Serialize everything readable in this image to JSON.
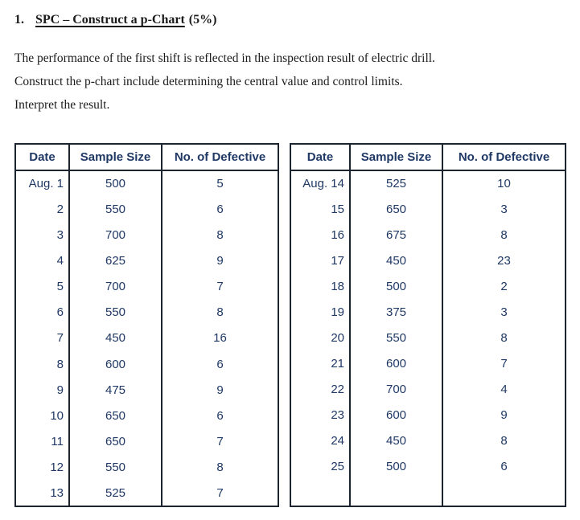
{
  "heading": {
    "number": "1.",
    "title_underlined": "SPC – Construct a p-Chart",
    "title_suffix": "(5%)"
  },
  "intro": {
    "lines": [
      "The performance of the first shift is reflected in the inspection result of electric drill.",
      "Construct the p-chart include determining the central value and control limits.",
      "Interpret the result."
    ]
  },
  "colors": {
    "table_text": "#1f3864",
    "table_border": "#1c2430",
    "body_text": "#1b1b1b",
    "page_bg": "#ffffff"
  },
  "tables": [
    {
      "columns": [
        "Date",
        "Sample Size",
        "No. of Defective"
      ],
      "rows": [
        [
          "Aug. 1",
          "500",
          "5"
        ],
        [
          "2",
          "550",
          "6"
        ],
        [
          "3",
          "700",
          "8"
        ],
        [
          "4",
          "625",
          "9"
        ],
        [
          "5",
          "700",
          "7"
        ],
        [
          "6",
          "550",
          "8"
        ],
        [
          "7",
          "450",
          "16"
        ],
        [
          "8",
          "600",
          "6"
        ],
        [
          "9",
          "475",
          "9"
        ],
        [
          "10",
          "650",
          "6"
        ],
        [
          "11",
          "650",
          "7"
        ],
        [
          "12",
          "550",
          "8"
        ],
        [
          "13",
          "525",
          "7"
        ]
      ],
      "has_filler_row": false
    },
    {
      "columns": [
        "Date",
        "Sample Size",
        "No. of Defective"
      ],
      "rows": [
        [
          "Aug. 14",
          "525",
          "10"
        ],
        [
          "15",
          "650",
          "3"
        ],
        [
          "16",
          "675",
          "8"
        ],
        [
          "17",
          "450",
          "23"
        ],
        [
          "18",
          "500",
          "2"
        ],
        [
          "19",
          "375",
          "3"
        ],
        [
          "20",
          "550",
          "8"
        ],
        [
          "21",
          "600",
          "7"
        ],
        [
          "22",
          "700",
          "4"
        ],
        [
          "23",
          "600",
          "9"
        ],
        [
          "24",
          "450",
          "8"
        ],
        [
          "25",
          "500",
          "6"
        ]
      ],
      "has_filler_row": true
    }
  ]
}
